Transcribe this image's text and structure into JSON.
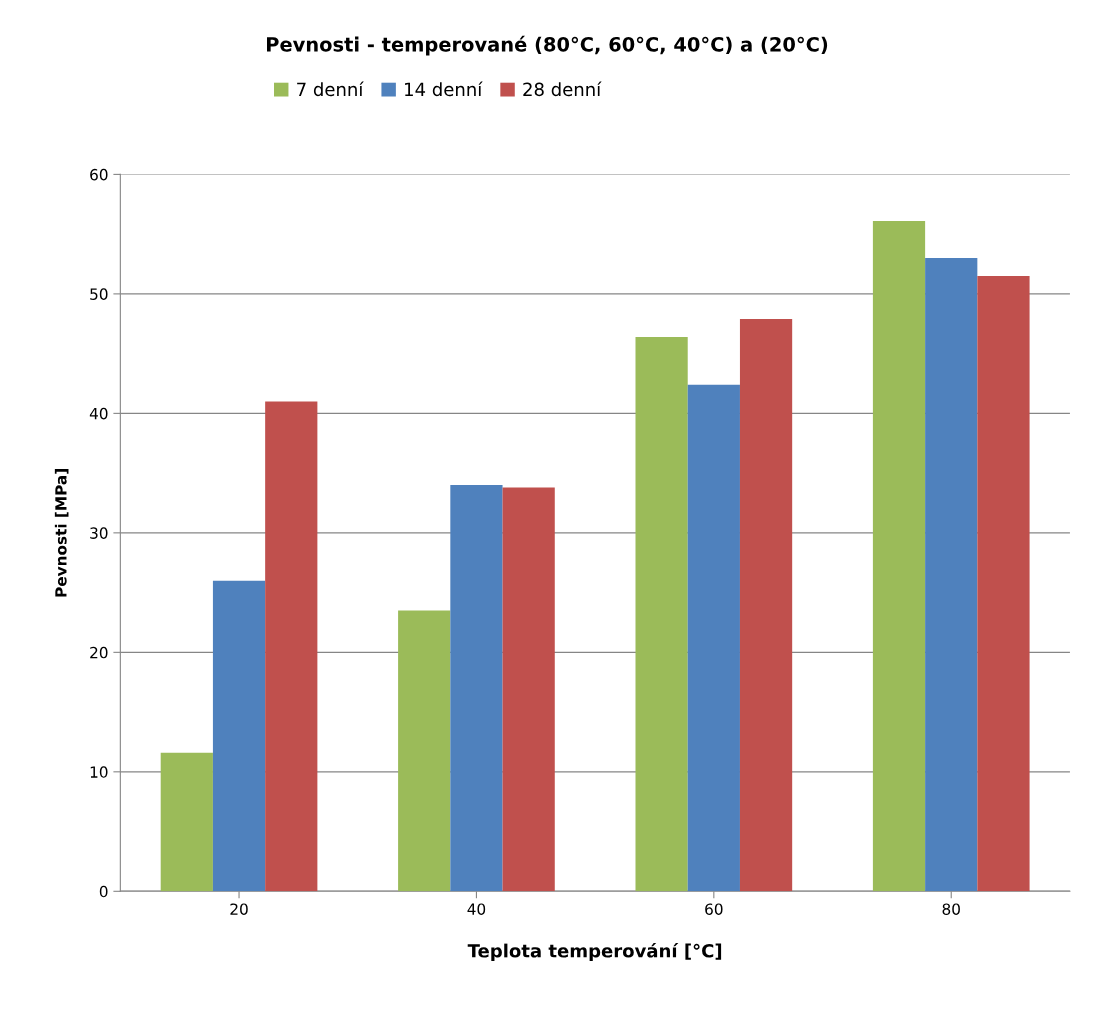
{
  "chart_data": {
    "type": "bar",
    "title": "Pevnosti - temperované (80°C, 60°C, 40°C) a (20°C)",
    "xlabel": "Teplota temperování [°C]",
    "ylabel": "Pevnosti [MPa]",
    "categories": [
      "20",
      "40",
      "60",
      "80"
    ],
    "series": [
      {
        "name": "7 denní",
        "color": "#9bbb59",
        "values": [
          11.6,
          23.5,
          46.4,
          56.1
        ]
      },
      {
        "name": "14 denní",
        "color": "#4f81bd",
        "values": [
          26.0,
          34.0,
          42.4,
          53.0
        ]
      },
      {
        "name": "28 denní",
        "color": "#c0504d",
        "values": [
          41.0,
          33.8,
          47.9,
          51.5
        ]
      }
    ],
    "ylim": [
      0,
      60
    ],
    "yticks": [
      0,
      10,
      20,
      30,
      40,
      50,
      60
    ],
    "grid": "y",
    "legend": "top"
  }
}
